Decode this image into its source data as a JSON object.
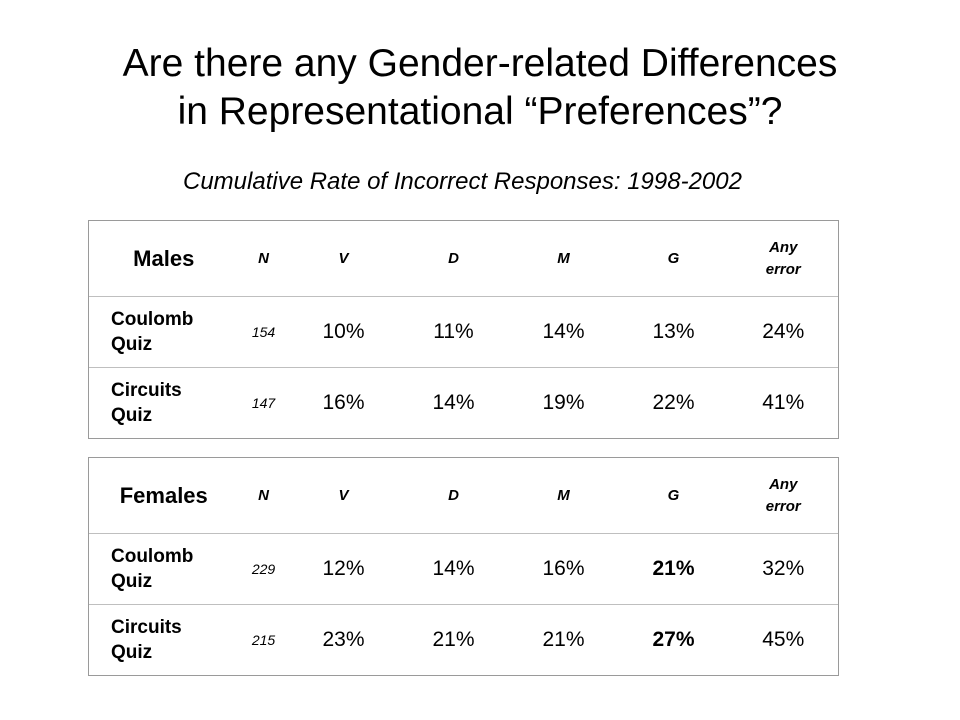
{
  "slide": {
    "title_line1": "Are there any Gender-related Differences",
    "title_line2": "in Representational “Preferences”?",
    "subtitle": "Cumulative Rate of Incorrect Responses: 1998-2002"
  },
  "columns": {
    "n": "N",
    "v": "V",
    "d": "D",
    "m": "M",
    "g": "G",
    "any_line1": "Any",
    "any_line2": "error"
  },
  "males": {
    "label": "Males",
    "rows": [
      {
        "quiz_line1": "Coulomb",
        "quiz_line2": "Quiz",
        "n": "154",
        "v": "10%",
        "d": "11%",
        "m": "14%",
        "g": "13%",
        "any": "24%"
      },
      {
        "quiz_line1": "Circuits",
        "quiz_line2": "Quiz",
        "n": "147",
        "v": "16%",
        "d": "14%",
        "m": "19%",
        "g": "22%",
        "any": "41%"
      }
    ]
  },
  "females": {
    "label": "Females",
    "rows": [
      {
        "quiz_line1": "Coulomb",
        "quiz_line2": "Quiz",
        "n": "229",
        "v": "12%",
        "d": "14%",
        "m": "16%",
        "g": "21%",
        "any": "32%"
      },
      {
        "quiz_line1": "Circuits",
        "quiz_line2": "Quiz",
        "n": "215",
        "v": "23%",
        "d": "21%",
        "m": "21%",
        "g": "27%",
        "any": "45%"
      }
    ]
  }
}
